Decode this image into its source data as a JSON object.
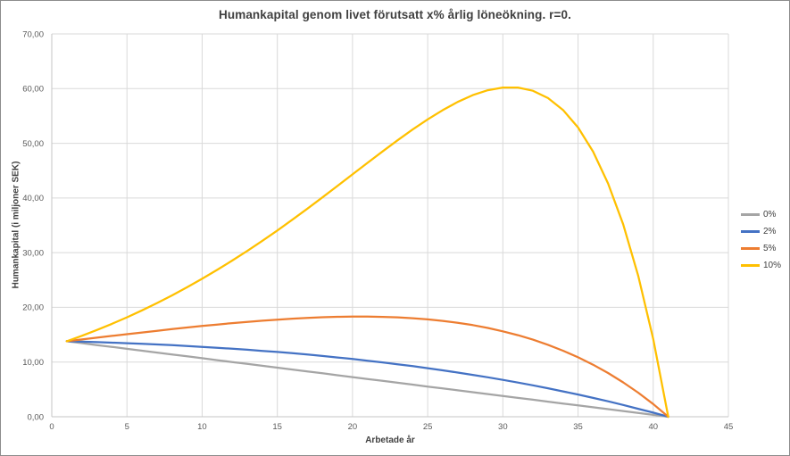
{
  "chart_data": {
    "type": "line",
    "title": "Humankapital genom livet förutsatt x% årlig löneökning. r=0.",
    "xlabel": "Arbetade år",
    "ylabel": "Humankapital (i miljoner SEK)",
    "xlim": [
      0,
      45
    ],
    "ylim": [
      0,
      70
    ],
    "grid": true,
    "legend_position": "right",
    "x_ticks": [
      0,
      5,
      10,
      15,
      20,
      25,
      30,
      35,
      40,
      45
    ],
    "x_tick_labels": [
      "0",
      "5",
      "10",
      "15",
      "20",
      "25",
      "30",
      "35",
      "40",
      "45"
    ],
    "y_ticks": [
      0,
      10,
      20,
      30,
      40,
      50,
      60,
      70
    ],
    "y_tick_labels": [
      "0,00",
      "10,00",
      "20,00",
      "30,00",
      "40,00",
      "50,00",
      "60,00",
      "70,00"
    ],
    "x": [
      1,
      2,
      3,
      4,
      5,
      6,
      7,
      8,
      9,
      10,
      11,
      12,
      13,
      14,
      15,
      16,
      17,
      18,
      19,
      20,
      21,
      22,
      23,
      24,
      25,
      26,
      27,
      28,
      29,
      30,
      31,
      32,
      33,
      34,
      35,
      36,
      37,
      38,
      39,
      40,
      41
    ],
    "series": [
      {
        "name": "0%",
        "color": "#a5a5a5",
        "values": [
          13.8,
          13.46,
          13.11,
          12.77,
          12.42,
          12.08,
          11.73,
          11.39,
          11.04,
          10.7,
          10.35,
          10.01,
          9.66,
          9.32,
          8.97,
          8.63,
          8.28,
          7.94,
          7.59,
          7.25,
          6.9,
          6.56,
          6.21,
          5.87,
          5.52,
          5.18,
          4.83,
          4.49,
          4.14,
          3.8,
          3.45,
          3.11,
          2.76,
          2.42,
          2.07,
          1.73,
          1.38,
          1.04,
          0.69,
          0.35,
          0
        ]
      },
      {
        "name": "2%",
        "color": "#4472c4",
        "values": [
          13.8,
          13.72,
          13.64,
          13.55,
          13.44,
          13.33,
          13.21,
          13.08,
          12.94,
          12.78,
          12.62,
          12.44,
          12.25,
          12.05,
          11.84,
          11.61,
          11.37,
          11.11,
          10.84,
          10.56,
          10.25,
          9.94,
          9.6,
          9.25,
          8.88,
          8.49,
          8.08,
          7.66,
          7.21,
          6.74,
          6.25,
          5.74,
          5.2,
          4.64,
          4.06,
          3.45,
          2.82,
          2.15,
          1.46,
          0.75,
          0
        ]
      },
      {
        "name": "5%",
        "color": "#ed7d31",
        "values": [
          13.8,
          14.13,
          14.45,
          14.78,
          15.1,
          15.41,
          15.72,
          16.02,
          16.31,
          16.59,
          16.86,
          17.11,
          17.35,
          17.56,
          17.76,
          17.93,
          18.07,
          18.19,
          18.27,
          18.31,
          18.31,
          18.26,
          18.17,
          18.01,
          17.8,
          17.53,
          17.17,
          16.75,
          16.23,
          15.62,
          14.91,
          14.09,
          13.15,
          12.08,
          10.87,
          9.52,
          7.99,
          6.29,
          4.41,
          2.31,
          0
        ]
      },
      {
        "name": "10%",
        "color": "#ffc000",
        "values": [
          13.8,
          14.8,
          15.86,
          16.99,
          18.18,
          19.45,
          20.78,
          22.19,
          23.67,
          25.22,
          26.85,
          28.55,
          30.32,
          32.16,
          34.06,
          36.03,
          38.05,
          40.11,
          42.2,
          44.31,
          46.42,
          48.51,
          50.55,
          52.52,
          54.37,
          56.07,
          57.57,
          58.8,
          59.7,
          60.2,
          60.2,
          59.6,
          58.27,
          56.09,
          52.88,
          48.48,
          42.66,
          35.19,
          25.81,
          14.2,
          0
        ]
      }
    ],
    "colors": {
      "gridline": "#d9d9d9",
      "axis_line": "#c6c6c6",
      "tick_label": "#595959",
      "title_text": "#404040",
      "background": "#ffffff",
      "border": "#8c8c8c"
    }
  }
}
